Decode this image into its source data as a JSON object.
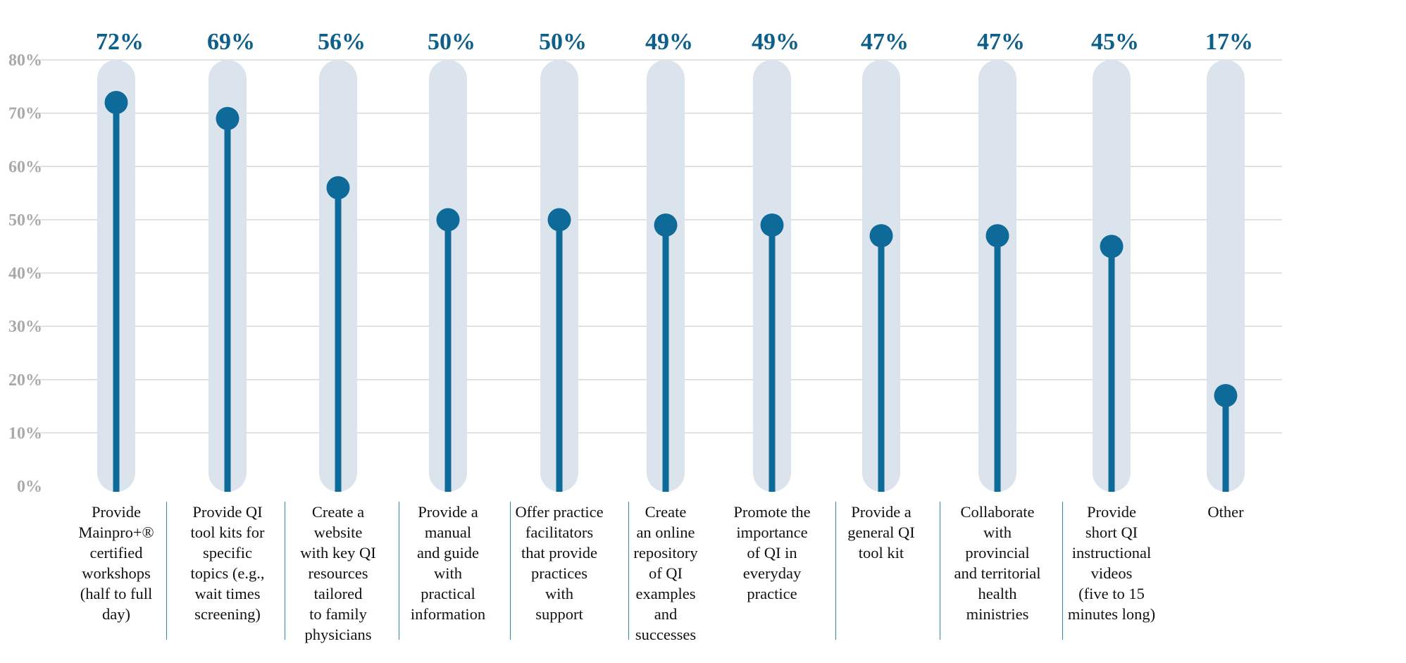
{
  "chart_data": {
    "type": "bar",
    "categories": [
      "Provide\nMainpro+®\ncertified\nworkshops\n(half to full\nday)",
      "Provide QI\ntool kits for\nspecific\ntopics (e.g.,\nwait times\nscreening)",
      "Create a\nwebsite\nwith key QI\nresources\ntailored\nto family\nphysicians",
      "Provide a\nmanual\nand guide\nwith\npractical\ninformation",
      "Offer practice\nfacilitators\nthat provide\npractices\nwith\nsupport",
      "Create\nan online\nrepository\nof QI\nexamples\nand\nsuccesses",
      "Promote the\nimportance\nof QI in\neveryday\npractice",
      "Provide a\ngeneral QI\ntool kit",
      "Collaborate\nwith\nprovincial\nand territorial\nhealth\nministries",
      "Provide\nshort QI\ninstructional\nvideos\n(five to 15\nminutes long)",
      "Other"
    ],
    "values": [
      72,
      69,
      56,
      50,
      50,
      49,
      49,
      47,
      47,
      45,
      17
    ],
    "value_labels": [
      "72%",
      "69%",
      "56%",
      "50%",
      "50%",
      "49%",
      "49%",
      "47%",
      "47%",
      "45%",
      "17%"
    ],
    "ylim": [
      0,
      80
    ],
    "yticks": [
      0,
      10,
      20,
      30,
      40,
      50,
      60,
      70,
      80
    ],
    "ytick_labels": [
      "0%",
      "10%",
      "20%",
      "30%",
      "40%",
      "50%",
      "60%",
      "70%",
      "80%"
    ],
    "grid": true,
    "colors": {
      "stem": "#0e6a98",
      "track": "#dbe4ec",
      "value_label": "#0e5f8a",
      "tick_label": "#a9a9a9",
      "grid": "#d8d8d8",
      "separator": "#2f87b3"
    }
  }
}
